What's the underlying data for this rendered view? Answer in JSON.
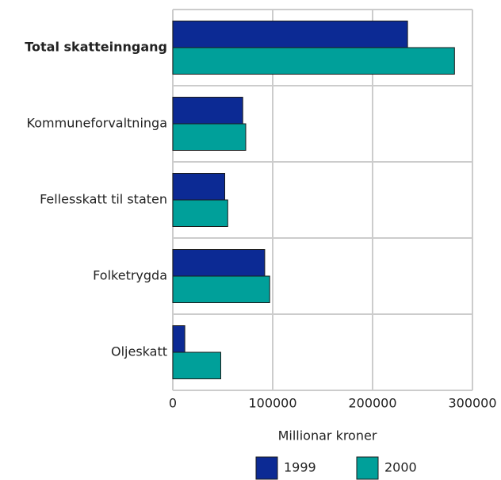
{
  "chart_data": {
    "type": "hbar",
    "xlabel": "Millionar kroner",
    "categories": [
      "Total skatteinngang",
      "Kommuneforvaltninga",
      "Fellesskatt til staten",
      "Folketrygda",
      "Oljeskatt"
    ],
    "series": [
      {
        "name": "1999",
        "color": "#0c2a94",
        "values": [
          235000,
          70000,
          52000,
          92000,
          12000
        ]
      },
      {
        "name": "2000",
        "color": "#00a09a",
        "values": [
          282000,
          73000,
          55000,
          97000,
          48000
        ]
      }
    ],
    "xlim": [
      0,
      300000
    ],
    "xticks": [
      0,
      100000,
      200000,
      300000
    ],
    "grid": true
  }
}
